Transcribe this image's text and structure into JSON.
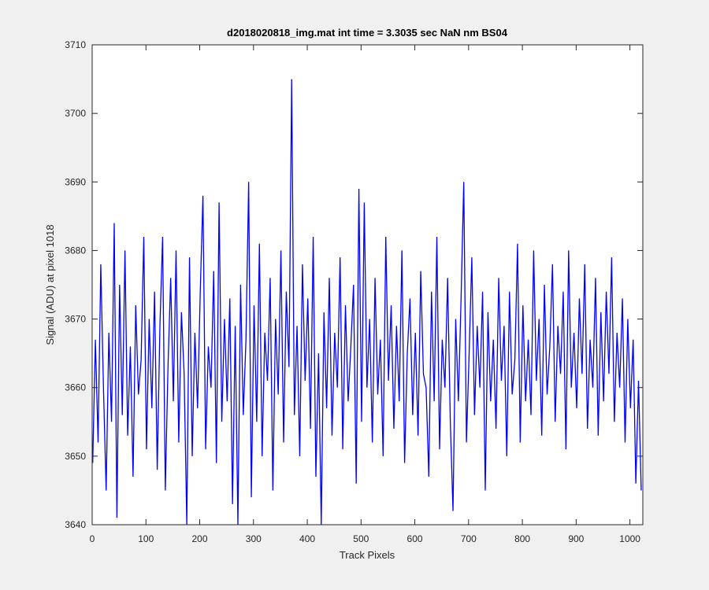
{
  "chart_data": {
    "type": "line",
    "title": "d2018020818_img.mat int time = 3.3035 sec  NaN nm BS04",
    "x_label": "Track Pixels",
    "y_label": "Signal (ADU) at pixel 1018",
    "color": "#0000ff",
    "xlim": [
      0,
      1024
    ],
    "ylim": [
      3640,
      3710
    ],
    "xticks": [
      0,
      100,
      200,
      300,
      400,
      500,
      600,
      700,
      800,
      900,
      1000
    ],
    "yticks": [
      3640,
      3650,
      3660,
      3670,
      3680,
      3690,
      3700,
      3710
    ],
    "x": [
      1,
      6,
      11,
      16,
      21,
      26,
      31,
      36,
      41,
      46,
      51,
      56,
      61,
      66,
      71,
      76,
      81,
      86,
      91,
      96,
      101,
      106,
      111,
      116,
      121,
      126,
      131,
      136,
      141,
      146,
      151,
      156,
      161,
      166,
      171,
      176,
      181,
      186,
      191,
      196,
      201,
      206,
      211,
      216,
      221,
      226,
      231,
      236,
      241,
      246,
      251,
      256,
      261,
      266,
      271,
      276,
      281,
      286,
      291,
      296,
      301,
      306,
      311,
      316,
      321,
      326,
      331,
      336,
      341,
      346,
      351,
      356,
      361,
      366,
      371,
      376,
      381,
      386,
      391,
      396,
      401,
      406,
      411,
      416,
      421,
      426,
      431,
      436,
      441,
      446,
      451,
      456,
      461,
      466,
      471,
      476,
      481,
      486,
      491,
      496,
      501,
      506,
      511,
      516,
      521,
      526,
      531,
      536,
      541,
      546,
      551,
      556,
      561,
      566,
      571,
      576,
      581,
      586,
      591,
      596,
      601,
      606,
      611,
      616,
      621,
      626,
      631,
      636,
      641,
      646,
      651,
      656,
      661,
      666,
      671,
      676,
      681,
      686,
      691,
      696,
      701,
      706,
      711,
      716,
      721,
      726,
      731,
      736,
      741,
      746,
      751,
      756,
      761,
      766,
      771,
      776,
      781,
      786,
      791,
      796,
      801,
      806,
      811,
      816,
      821,
      826,
      831,
      836,
      841,
      846,
      851,
      856,
      861,
      866,
      871,
      876,
      881,
      886,
      891,
      896,
      901,
      906,
      911,
      916,
      921,
      926,
      931,
      936,
      941,
      946,
      951,
      956,
      961,
      966,
      971,
      976,
      981,
      986,
      991,
      996,
      1001,
      1006,
      1011,
      1016,
      1021
    ],
    "values": [
      3649,
      3667,
      3652,
      3678,
      3660,
      3645,
      3668,
      3655,
      3684,
      3641,
      3675,
      3656,
      3680,
      3653,
      3666,
      3647,
      3672,
      3659,
      3664,
      3682,
      3651,
      3670,
      3657,
      3674,
      3648,
      3669,
      3682,
      3645,
      3663,
      3676,
      3658,
      3680,
      3652,
      3671,
      3662,
      3640,
      3679,
      3650,
      3668,
      3657,
      3674,
      3688,
      3651,
      3666,
      3660,
      3677,
      3649,
      3687,
      3655,
      3670,
      3658,
      3673,
      3643,
      3669,
      3640,
      3675,
      3656,
      3667,
      3690,
      3644,
      3672,
      3655,
      3681,
      3650,
      3668,
      3661,
      3676,
      3645,
      3670,
      3659,
      3680,
      3652,
      3674,
      3663,
      3705,
      3656,
      3669,
      3650,
      3678,
      3661,
      3673,
      3654,
      3682,
      3647,
      3665,
      3640,
      3671,
      3657,
      3676,
      3653,
      3668,
      3660,
      3679,
      3651,
      3672,
      3658,
      3666,
      3675,
      3646,
      3689,
      3655,
      3687,
      3660,
      3670,
      3652,
      3676,
      3659,
      3667,
      3650,
      3682,
      3661,
      3672,
      3654,
      3669,
      3658,
      3680,
      3649,
      3665,
      3673,
      3656,
      3668,
      3653,
      3677,
      3662,
      3660,
      3647,
      3674,
      3658,
      3682,
      3651,
      3667,
      3660,
      3676,
      3655,
      3642,
      3670,
      3658,
      3673,
      3690,
      3652,
      3665,
      3679,
      3656,
      3669,
      3660,
      3674,
      3645,
      3671,
      3658,
      3667,
      3654,
      3676,
      3661,
      3669,
      3650,
      3674,
      3659,
      3664,
      3681,
      3652,
      3672,
      3658,
      3667,
      3656,
      3680,
      3661,
      3670,
      3653,
      3675,
      3659,
      3666,
      3678,
      3655,
      3669,
      3662,
      3674,
      3651,
      3680,
      3660,
      3668,
      3657,
      3673,
      3662,
      3678,
      3654,
      3667,
      3660,
      3676,
      3653,
      3671,
      3658,
      3674,
      3662,
      3679,
      3655,
      3668,
      3660,
      3673,
      3652,
      3670,
      3657,
      3667,
      3646,
      3661,
      3645
    ]
  }
}
